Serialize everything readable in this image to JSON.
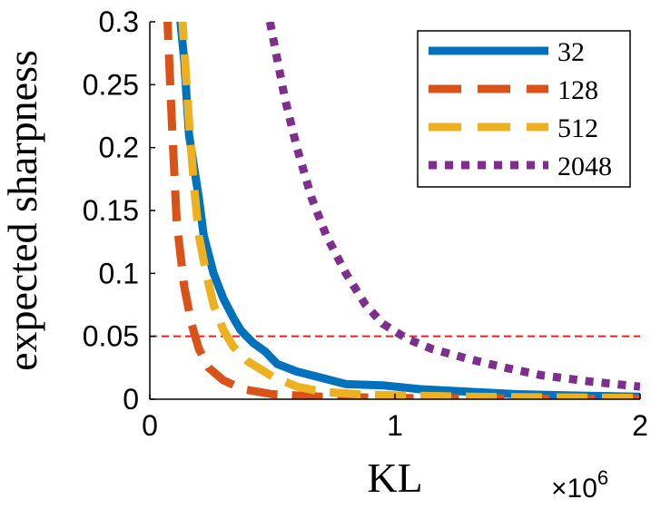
{
  "chart_data": {
    "type": "line",
    "title": "",
    "xlabel": "KL",
    "ylabel": "expected sharpness",
    "x_multiplier": {
      "base": "×10",
      "exponent": "6"
    },
    "xlim": [
      0,
      2
    ],
    "ylim": [
      0,
      0.3
    ],
    "xticks": [
      "0",
      "1",
      "2"
    ],
    "yticks": [
      "0",
      "0.05",
      "0.1",
      "0.15",
      "0.2",
      "0.25",
      "0.3"
    ],
    "legend_position": "top-right",
    "threshold": {
      "y": 0.05,
      "color": "#e8211e",
      "style": "dashed"
    },
    "series": [
      {
        "name": "32",
        "color": "#0072bd",
        "style": "solid",
        "points": [
          [
            0.12,
            0.31
          ],
          [
            0.14,
            0.27
          ],
          [
            0.16,
            0.21
          ],
          [
            0.2,
            0.16
          ],
          [
            0.22,
            0.13
          ],
          [
            0.26,
            0.1
          ],
          [
            0.3,
            0.08
          ],
          [
            0.34,
            0.065
          ],
          [
            0.37,
            0.055
          ],
          [
            0.42,
            0.045
          ],
          [
            0.47,
            0.038
          ],
          [
            0.52,
            0.028
          ],
          [
            0.6,
            0.022
          ],
          [
            0.7,
            0.017
          ],
          [
            0.8,
            0.012
          ],
          [
            0.95,
            0.011
          ],
          [
            1.1,
            0.008
          ],
          [
            1.3,
            0.006
          ],
          [
            1.5,
            0.004
          ],
          [
            1.7,
            0.003
          ],
          [
            2.0,
            0.002
          ]
        ]
      },
      {
        "name": "128",
        "color": "#d95319",
        "style": "dashed",
        "points": [
          [
            0.07,
            0.31
          ],
          [
            0.09,
            0.22
          ],
          [
            0.11,
            0.14
          ],
          [
            0.14,
            0.09
          ],
          [
            0.17,
            0.06
          ],
          [
            0.2,
            0.04
          ],
          [
            0.24,
            0.025
          ],
          [
            0.3,
            0.015
          ],
          [
            0.38,
            0.008
          ],
          [
            0.5,
            0.004
          ],
          [
            0.7,
            0.002
          ],
          [
            1.0,
            0.001
          ],
          [
            1.5,
            0.0005
          ],
          [
            2.0,
            0.0003
          ]
        ]
      },
      {
        "name": "512",
        "color": "#edb120",
        "style": "dashed",
        "points": [
          [
            0.13,
            0.31
          ],
          [
            0.14,
            0.28
          ],
          [
            0.16,
            0.22
          ],
          [
            0.18,
            0.17
          ],
          [
            0.2,
            0.13
          ],
          [
            0.23,
            0.1
          ],
          [
            0.26,
            0.075
          ],
          [
            0.3,
            0.055
          ],
          [
            0.34,
            0.042
          ],
          [
            0.4,
            0.03
          ],
          [
            0.5,
            0.018
          ],
          [
            0.6,
            0.01
          ],
          [
            0.7,
            0.006
          ],
          [
            0.85,
            0.004
          ],
          [
            1.0,
            0.003
          ],
          [
            1.3,
            0.002
          ],
          [
            1.6,
            0.0015
          ],
          [
            2.0,
            0.001
          ]
        ]
      },
      {
        "name": "2048",
        "color": "#7e2f8e",
        "style": "dotted",
        "points": [
          [
            0.49,
            0.3
          ],
          [
            0.55,
            0.24
          ],
          [
            0.6,
            0.2
          ],
          [
            0.66,
            0.16
          ],
          [
            0.72,
            0.13
          ],
          [
            0.8,
            0.1
          ],
          [
            0.88,
            0.075
          ],
          [
            0.95,
            0.06
          ],
          [
            1.05,
            0.048
          ],
          [
            1.15,
            0.04
          ],
          [
            1.3,
            0.032
          ],
          [
            1.45,
            0.025
          ],
          [
            1.6,
            0.019
          ],
          [
            1.8,
            0.014
          ],
          [
            2.0,
            0.01
          ]
        ]
      }
    ]
  }
}
